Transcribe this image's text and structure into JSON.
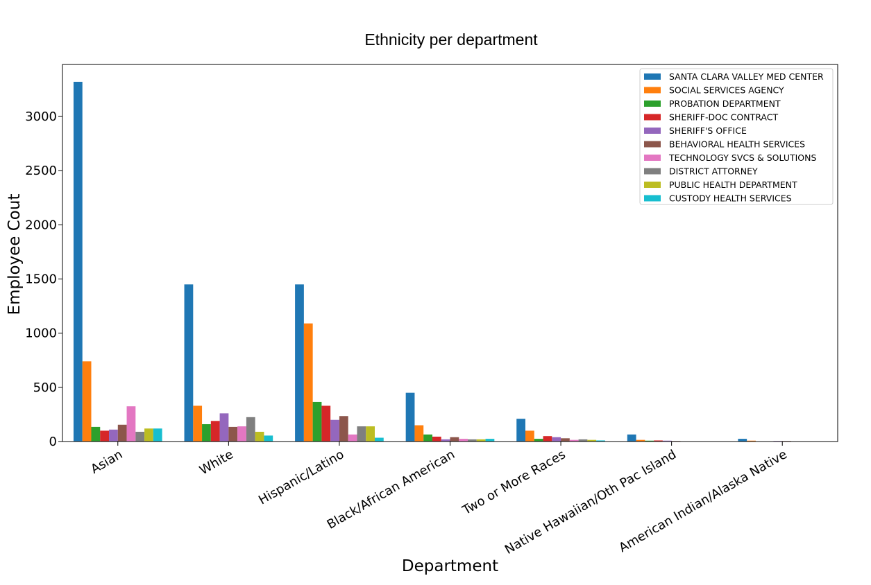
{
  "chart_data": {
    "type": "bar",
    "title": "Ethnicity per department",
    "xlabel": "Department",
    "ylabel": "Employee Cout",
    "ylim": [
      0,
      3480
    ],
    "yticks": [
      0,
      500,
      1000,
      1500,
      2000,
      2500,
      3000
    ],
    "grid": false,
    "legend_position": "top-right",
    "categories": [
      "Asian",
      "White",
      "Hispanic/Latino",
      "Black/African American",
      "Two or More Races",
      "Native Hawaiian/Oth Pac Island",
      "American Indian/Alaska Native"
    ],
    "series": [
      {
        "name": "SANTA CLARA VALLEY MED CENTER",
        "color": "#1f77b4",
        "values": [
          3320,
          1450,
          1450,
          450,
          210,
          65,
          25
        ]
      },
      {
        "name": "SOCIAL SERVICES AGENCY",
        "color": "#ff7f0e",
        "values": [
          740,
          330,
          1090,
          150,
          100,
          15,
          8
        ]
      },
      {
        "name": "PROBATION DEPARTMENT",
        "color": "#2ca02c",
        "values": [
          135,
          160,
          365,
          65,
          25,
          8,
          3
        ]
      },
      {
        "name": "SHERIFF-DOC CONTRACT",
        "color": "#d62728",
        "values": [
          100,
          190,
          330,
          45,
          50,
          10,
          3
        ]
      },
      {
        "name": "SHERIFF'S OFFICE",
        "color": "#9467bd",
        "values": [
          110,
          260,
          200,
          20,
          40,
          8,
          5
        ]
      },
      {
        "name": "BEHAVIORAL HEALTH SERVICES",
        "color": "#8c564b",
        "values": [
          155,
          135,
          235,
          40,
          30,
          5,
          5
        ]
      },
      {
        "name": "TECHNOLOGY SVCS & SOLUTIONS",
        "color": "#e377c2",
        "values": [
          325,
          140,
          65,
          25,
          15,
          3,
          2
        ]
      },
      {
        "name": "DISTRICT ATTORNEY",
        "color": "#7f7f7f",
        "values": [
          90,
          225,
          140,
          20,
          20,
          3,
          2
        ]
      },
      {
        "name": "PUBLIC HEALTH DEPARTMENT",
        "color": "#bcbd22",
        "values": [
          120,
          90,
          140,
          20,
          15,
          3,
          2
        ]
      },
      {
        "name": "CUSTODY HEALTH SERVICES",
        "color": "#17becf",
        "values": [
          120,
          55,
          35,
          25,
          10,
          2,
          1
        ]
      }
    ]
  }
}
